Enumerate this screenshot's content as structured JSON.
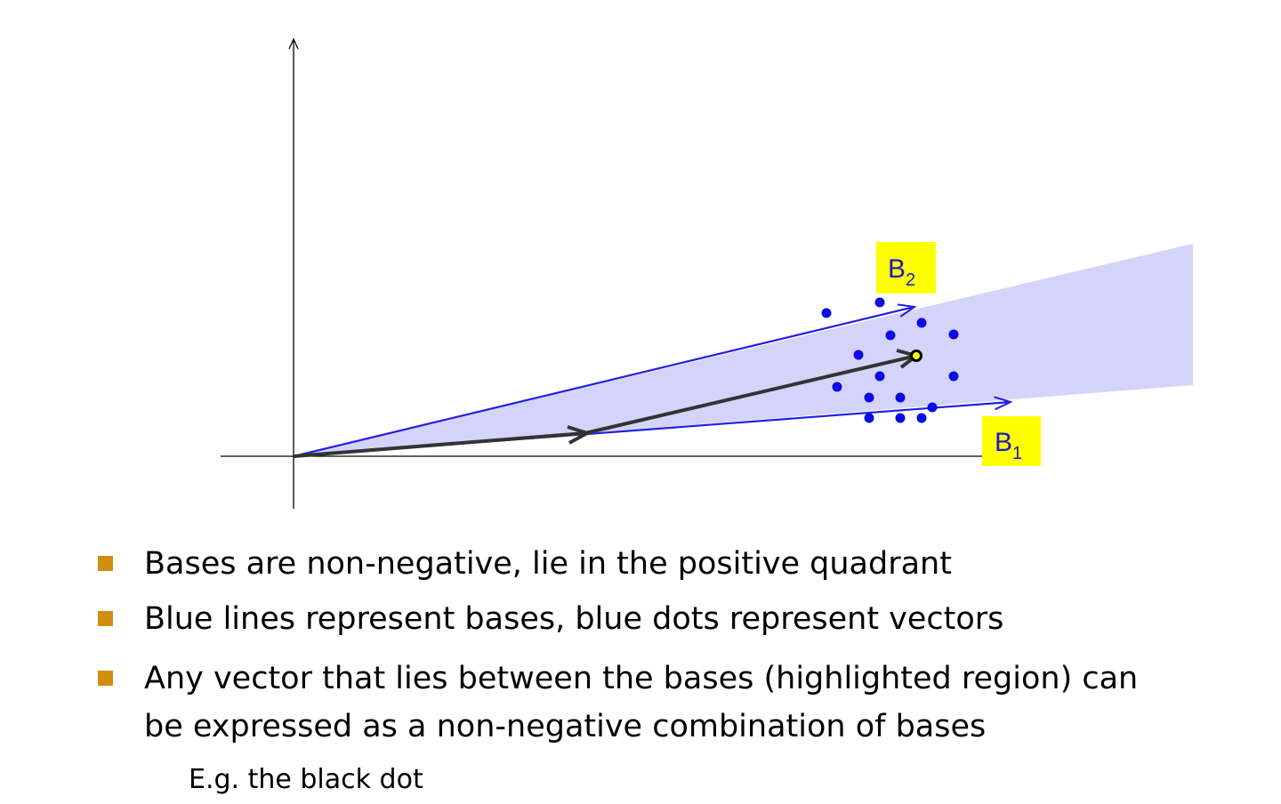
{
  "diagram": {
    "labels": {
      "b2_main": "B",
      "b2_sub": "2",
      "b1_main": "B",
      "b1_sub": "1"
    },
    "colors": {
      "region_fill": "#d4d4fb",
      "basis_line": "#1f1fe8",
      "dot": "#0a0ae6",
      "vector_arrow": "#333333",
      "axis": "#000000",
      "label_background": "#ffff00",
      "highlighted_dot_fill": "#ffff00"
    }
  },
  "bullets": [
    {
      "line1": "Bases are non-negative, lie in the positive quadrant"
    },
    {
      "line1": "Blue lines represent bases, blue dots represent vectors"
    },
    {
      "line1": "Any vector that lies between the bases (highlighted region) can",
      "line2": "be expressed as a non-negative combination of bases"
    }
  ],
  "sub_note": "E.g. the black dot",
  "bullet_color": "#d08f0f"
}
